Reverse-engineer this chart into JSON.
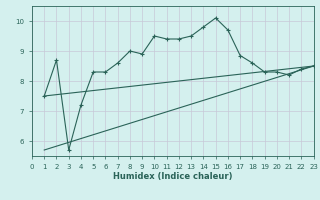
{
  "xlabel": "Humidex (Indice chaleur)",
  "bg_color": "#d4f0ee",
  "line_color": "#2a6358",
  "grid_color": "#c8c8d8",
  "xlim": [
    0,
    23
  ],
  "ylim": [
    5.5,
    10.5
  ],
  "yticks": [
    6,
    7,
    8,
    9,
    10
  ],
  "xticks": [
    0,
    1,
    2,
    3,
    4,
    5,
    6,
    7,
    8,
    9,
    10,
    11,
    12,
    13,
    14,
    15,
    16,
    17,
    18,
    19,
    20,
    21,
    22,
    23
  ],
  "curve_x": [
    1,
    2,
    3,
    4,
    5,
    6,
    7,
    8,
    9,
    10,
    11,
    12,
    13,
    14,
    15,
    16,
    17,
    18,
    19,
    20,
    21,
    22,
    23
  ],
  "curve_y": [
    7.5,
    8.7,
    5.7,
    7.2,
    8.3,
    8.3,
    8.6,
    9.0,
    8.9,
    9.5,
    9.4,
    9.4,
    9.5,
    9.8,
    10.1,
    9.7,
    8.85,
    8.6,
    8.3,
    8.3,
    8.2,
    8.4,
    8.5
  ],
  "line1_x": [
    1,
    23
  ],
  "line1_y": [
    5.7,
    8.5
  ],
  "line2_x": [
    1,
    23
  ],
  "line2_y": [
    7.5,
    8.5
  ]
}
